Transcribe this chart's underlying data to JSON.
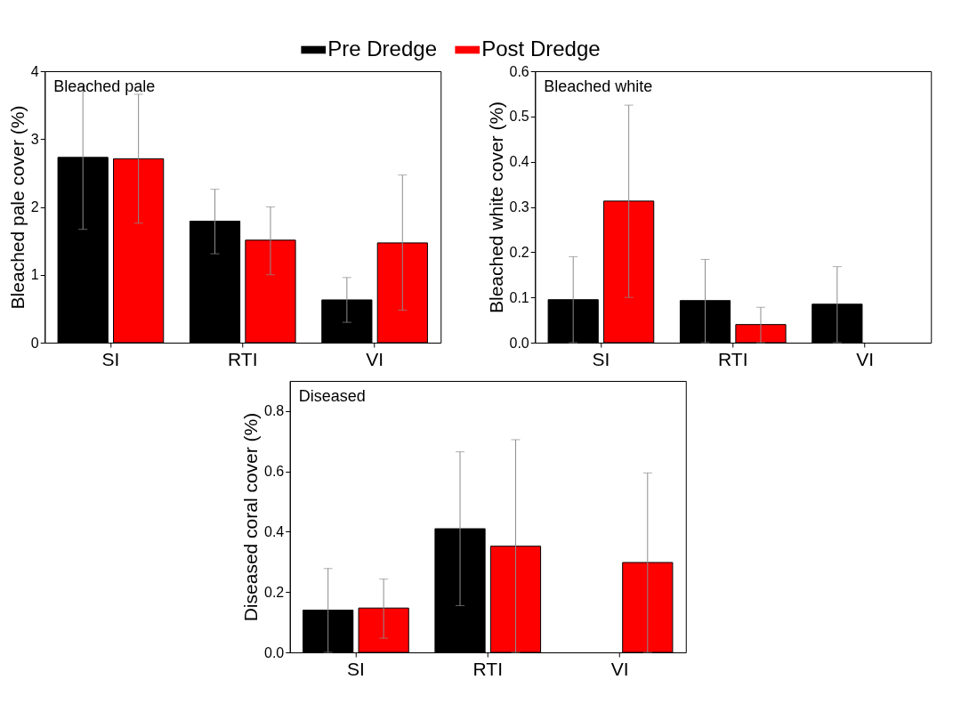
{
  "chart_data": [
    {
      "type": "bar",
      "title": "Bleached pale",
      "ylabel": "Bleached pale cover (%)",
      "categories": [
        "SI",
        "RTI",
        "VI"
      ],
      "legend": "top",
      "ylim": [
        0,
        4
      ],
      "yticks": [
        0,
        1,
        2,
        3,
        4
      ],
      "series": [
        {
          "name": "Pre Dredge",
          "color": "#000000",
          "values": [
            2.73,
            1.79,
            0.63
          ],
          "errors": [
            [
              1.67,
              3.78
            ],
            [
              1.31,
              2.26
            ],
            [
              0.3,
              0.96
            ]
          ]
        },
        {
          "name": "Post Dredge",
          "color": "#ff0000",
          "values": [
            2.71,
            1.51,
            1.47
          ],
          "errors": [
            [
              1.76,
              3.66
            ],
            [
              1.0,
              2.0
            ],
            [
              0.48,
              2.47
            ]
          ]
        }
      ]
    },
    {
      "type": "bar",
      "title": "Bleached white",
      "ylabel": "Bleached white cover (%)",
      "categories": [
        "SI",
        "RTI",
        "VI"
      ],
      "ylim": [
        0,
        0.6
      ],
      "yticks": [
        {
          "value": 0,
          "label": "0.0"
        },
        0.1,
        0.2,
        0.3,
        0.4,
        0.5,
        0.6
      ],
      "series": [
        {
          "name": "Pre Dredge",
          "color": "#000000",
          "values": [
            0.095,
            0.093,
            0.085
          ],
          "errors": [
            [
              0,
              0.19
            ],
            [
              0,
              0.184
            ],
            [
              0,
              0.168
            ]
          ]
        },
        {
          "name": "Post Dredge",
          "color": "#ff0000",
          "values": [
            0.313,
            0.04,
            null
          ],
          "errors": [
            [
              0.1,
              0.525
            ],
            [
              0,
              0.078
            ],
            null
          ]
        }
      ]
    },
    {
      "type": "bar",
      "title": "Diseased",
      "ylabel": "Diseased coral cover (%)",
      "categories": [
        "SI",
        "RTI",
        "VI"
      ],
      "ylim": [
        0,
        0.9
      ],
      "yticks": [
        {
          "value": 0,
          "label": "0.0"
        },
        0.2,
        0.4,
        0.6,
        0.8
      ],
      "series": [
        {
          "name": "Pre Dredge",
          "color": "#000000",
          "values": [
            0.14,
            0.41,
            null
          ],
          "errors": [
            [
              0,
              0.278
            ],
            [
              0.155,
              0.665
            ],
            null
          ]
        },
        {
          "name": "Post Dredge",
          "color": "#ff0000",
          "values": [
            0.147,
            0.352,
            0.298
          ],
          "errors": [
            [
              0.047,
              0.243
            ],
            [
              0,
              0.705
            ],
            [
              0,
              0.595
            ]
          ]
        }
      ]
    }
  ]
}
